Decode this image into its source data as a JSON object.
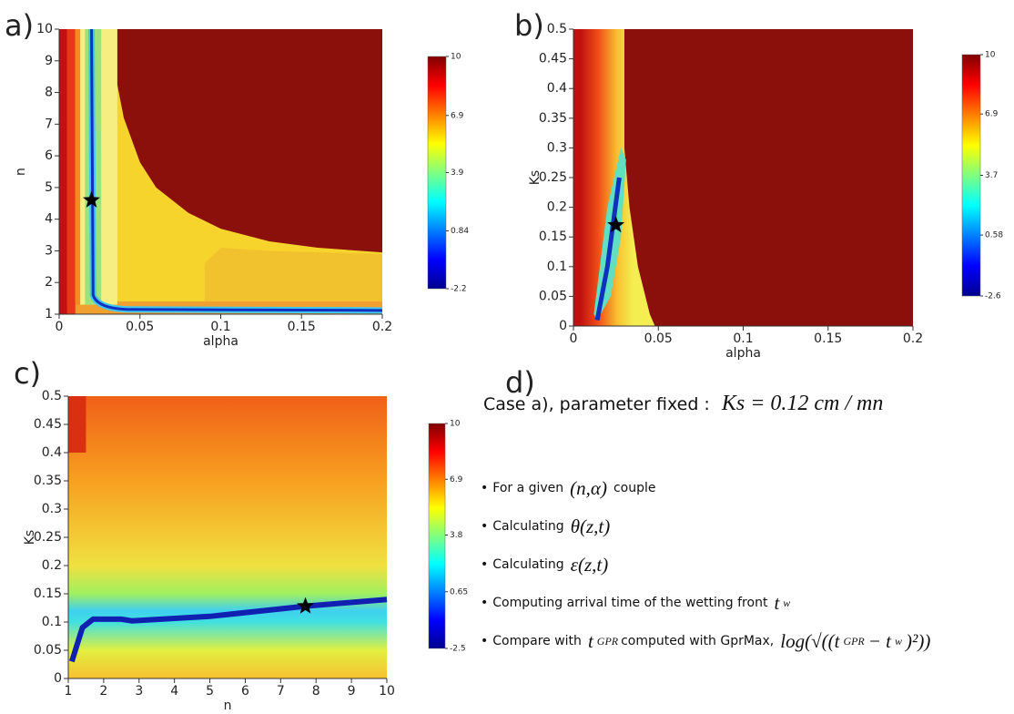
{
  "chart_data": [
    {
      "type": "heatmap",
      "panel": "a)",
      "x_label": "alpha",
      "y_label": "n",
      "xlim": [
        0,
        0.2
      ],
      "xticks": [
        0,
        0.05,
        0.1,
        0.15,
        0.2
      ],
      "ylim": [
        1,
        10
      ],
      "yticks": [
        1,
        2,
        3,
        4,
        5,
        6,
        7,
        8,
        9,
        10
      ],
      "colormap": "jet",
      "clim": [
        -2.2,
        10
      ],
      "cticks": [
        -2.2,
        0.84,
        3.9,
        6.9,
        10
      ],
      "star": {
        "x": 0.02,
        "y": 4.6
      }
    },
    {
      "type": "heatmap",
      "panel": "b)",
      "x_label": "alpha",
      "y_label": "Ks",
      "xlim": [
        0,
        0.2
      ],
      "xticks": [
        0,
        0.05,
        0.1,
        0.15,
        0.2
      ],
      "ylim": [
        0,
        0.5
      ],
      "yticks": [
        0,
        0.05,
        0.1,
        0.15,
        0.2,
        0.25,
        0.3,
        0.35,
        0.4,
        0.45,
        0.5
      ],
      "colormap": "jet",
      "clim": [
        -2.6,
        10
      ],
      "cticks": [
        -2.6,
        0.58,
        3.7,
        6.9,
        10
      ],
      "star": {
        "x": 0.025,
        "y": 0.17
      }
    },
    {
      "type": "heatmap",
      "panel": "c)",
      "x_label": "n",
      "y_label": "Ks",
      "xlim": [
        1,
        10
      ],
      "xticks": [
        1,
        2,
        3,
        4,
        5,
        6,
        7,
        8,
        9,
        10
      ],
      "ylim": [
        0,
        0.5
      ],
      "yticks": [
        0,
        0.05,
        0.1,
        0.15,
        0.2,
        0.25,
        0.3,
        0.35,
        0.4,
        0.45,
        0.5
      ],
      "colormap": "jet",
      "clim": [
        -2.5,
        10
      ],
      "cticks": [
        -2.5,
        0.65,
        3.8,
        6.9,
        10
      ],
      "star": {
        "x": 7.7,
        "y": 0.128
      }
    }
  ],
  "panel_d": {
    "label": "d)",
    "heading": [
      {
        "text": "Case a), parameter fixed :"
      },
      {
        "text": "Ks = 0.12 cm / mn",
        "math": true
      }
    ],
    "bullets": [
      [
        {
          "text": "For a given"
        },
        {
          "text": "(n,α)",
          "math": true
        },
        {
          "text": "couple"
        }
      ],
      [
        {
          "text": "Calculating"
        },
        {
          "text": "θ(z,t)",
          "math": true
        }
      ],
      [
        {
          "text": "Calculating"
        },
        {
          "text": "ε(z,t)",
          "math": true
        }
      ],
      [
        {
          "text": "Computing arrival time of the wetting front"
        },
        {
          "text": "t",
          "math": true
        },
        {
          "text": "w",
          "sub": true
        }
      ],
      [
        {
          "text": "Compare with"
        },
        {
          "text": "t",
          "math": true
        },
        {
          "text": "GPR",
          "sub": true
        },
        {
          "text": "computed with GprMax,"
        },
        {
          "text": "log(√((t",
          "math": true
        },
        {
          "text": "GPR",
          "sub": true
        },
        {
          "text": "− t",
          "math": true
        },
        {
          "text": "w",
          "sub": true
        },
        {
          "text": ")²))",
          "math": true
        }
      ]
    ]
  }
}
